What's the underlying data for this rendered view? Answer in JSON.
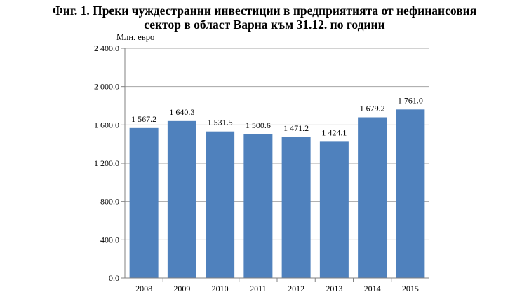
{
  "title": {
    "line1": "Фиг. 1. Преки чуждестранни инвестиции в предприятията от нефинансовия",
    "line2": "сектор в област Варна към 31.12. по години"
  },
  "chart_data": {
    "type": "bar",
    "ylabel": "Млн. евро",
    "xlabel": "",
    "categories": [
      "2008",
      "2009",
      "2010",
      "2011",
      "2012",
      "2013",
      "2014",
      "2015"
    ],
    "values": [
      1567.2,
      1640.3,
      1531.5,
      1500.6,
      1471.2,
      1424.1,
      1679.2,
      1761.0
    ],
    "value_labels": [
      "1 567.2",
      "1 640.3",
      "1 531.5",
      "1 500.6",
      "1 471.2",
      "1 424.1",
      "1 679.2",
      "1 761.0"
    ],
    "yticks": [
      0,
      400,
      800,
      1200,
      1600,
      2000,
      2400
    ],
    "ytick_labels": [
      "0.0",
      "400.0",
      "800.0",
      "1 200.0",
      "1 600.0",
      "2 000.0",
      "2 400.0"
    ],
    "ylim": [
      0,
      2400
    ],
    "grid": true,
    "legend": "none",
    "bar_color": "#4f81bd",
    "grid_color": "#a6a6a6"
  }
}
